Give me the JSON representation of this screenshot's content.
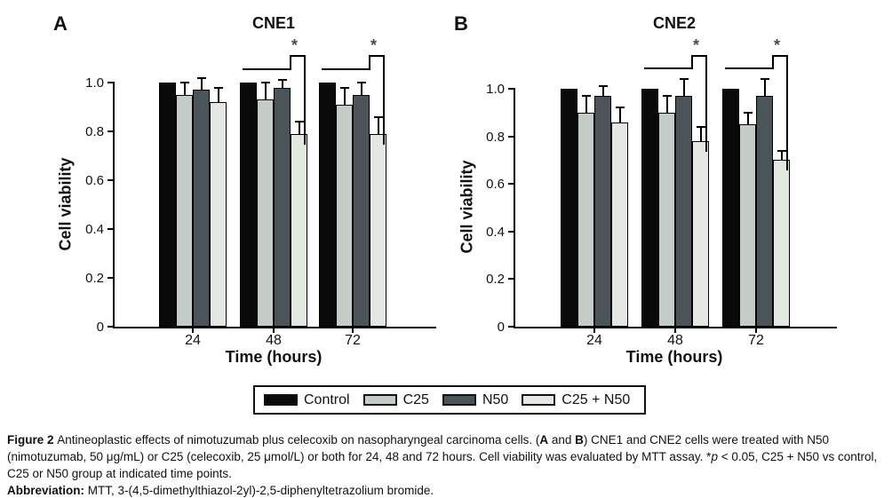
{
  "panels": [
    {
      "label": "A",
      "title": "CNE1",
      "ylabel": "Cell viability",
      "xlabel": "Time (hours)"
    },
    {
      "label": "B",
      "title": "CNE2",
      "ylabel": "Cell viability",
      "xlabel": "Time (hours)"
    }
  ],
  "legend": {
    "items": [
      {
        "label": "Control",
        "color": "#0a0a0a"
      },
      {
        "label": "C25",
        "color": "#c4ccc7"
      },
      {
        "label": "N50",
        "color": "#4b5559"
      },
      {
        "label": "C25 + N50",
        "color": "#e3e8e3"
      }
    ]
  },
  "chart_data": [
    {
      "type": "bar",
      "title": "CNE1",
      "xlabel": "Time (hours)",
      "ylabel": "Cell viability",
      "categories": [
        "24",
        "48",
        "72"
      ],
      "yticks": [
        0,
        0.2,
        0.4,
        0.6,
        0.8,
        1.0
      ],
      "ylim": [
        0,
        1.0
      ],
      "grid": false,
      "legend_position": "bottom",
      "series": [
        {
          "name": "Control",
          "color": "#0a0a0a",
          "values": [
            1.0,
            1.0,
            1.0
          ],
          "errors": [
            0,
            0,
            0
          ]
        },
        {
          "name": "C25",
          "color": "#c4ccc7",
          "values": [
            0.95,
            0.93,
            0.91
          ],
          "errors": [
            0.05,
            0.07,
            0.07
          ]
        },
        {
          "name": "N50",
          "color": "#4b5559",
          "values": [
            0.97,
            0.98,
            0.95
          ],
          "errors": [
            0.05,
            0.03,
            0.05
          ]
        },
        {
          "name": "C25 + N50",
          "color": "#e3e8e3",
          "values": [
            0.92,
            0.79,
            0.79
          ],
          "errors": [
            0.06,
            0.05,
            0.07
          ]
        }
      ],
      "significance": [
        {
          "category": "48",
          "label": "*"
        },
        {
          "category": "72",
          "label": "*"
        }
      ]
    },
    {
      "type": "bar",
      "title": "CNE2",
      "xlabel": "Time (hours)",
      "ylabel": "Cell viability",
      "categories": [
        "24",
        "48",
        "72"
      ],
      "yticks": [
        0,
        0.2,
        0.4,
        0.6,
        0.8,
        1.0
      ],
      "ylim": [
        0,
        1.0
      ],
      "grid": false,
      "legend_position": "bottom",
      "series": [
        {
          "name": "Control",
          "color": "#0a0a0a",
          "values": [
            1.0,
            1.0,
            1.0
          ],
          "errors": [
            0,
            0,
            0
          ]
        },
        {
          "name": "C25",
          "color": "#c4ccc7",
          "values": [
            0.9,
            0.9,
            0.85
          ],
          "errors": [
            0.07,
            0.07,
            0.05
          ]
        },
        {
          "name": "N50",
          "color": "#4b5559",
          "values": [
            0.97,
            0.97,
            0.97
          ],
          "errors": [
            0.04,
            0.07,
            0.07
          ]
        },
        {
          "name": "C25 + N50",
          "color": "#e3e8e3",
          "values": [
            0.86,
            0.78,
            0.7
          ],
          "errors": [
            0.06,
            0.06,
            0.04
          ]
        }
      ],
      "significance": [
        {
          "category": "48",
          "label": "*"
        },
        {
          "category": "72",
          "label": "*"
        }
      ]
    }
  ],
  "caption": {
    "paragraphs": [
      {
        "segments": [
          {
            "text": "Figure 2 ",
            "bold": true
          },
          {
            "text": "Antineoplastic effects of nimotuzumab plus celecoxib on nasopharyngeal carcinoma cells. ("
          },
          {
            "text": "A",
            "bold": true
          },
          {
            "text": " and "
          },
          {
            "text": "B",
            "bold": true
          },
          {
            "text": ") CNE1 and CNE2 cells were treated with N50 (nimotuzumab, 50 μg/mL) or C25 (celecoxib, 25 μmol/L) or both for 24, 48 and 72 hours. Cell viability was evaluated by MTT assay. *"
          },
          {
            "text": "p",
            "italic": true
          },
          {
            "text": " < 0.05, C25 + N50 vs control, C25 or N50 group at indicated time points."
          }
        ]
      },
      {
        "segments": [
          {
            "text": "Abbreviation:",
            "bold": true
          },
          {
            "text": " MTT, 3-(4,5-dimethylthiazol-2yl)-2,5-diphenyltetrazolium bromide."
          }
        ]
      }
    ]
  }
}
